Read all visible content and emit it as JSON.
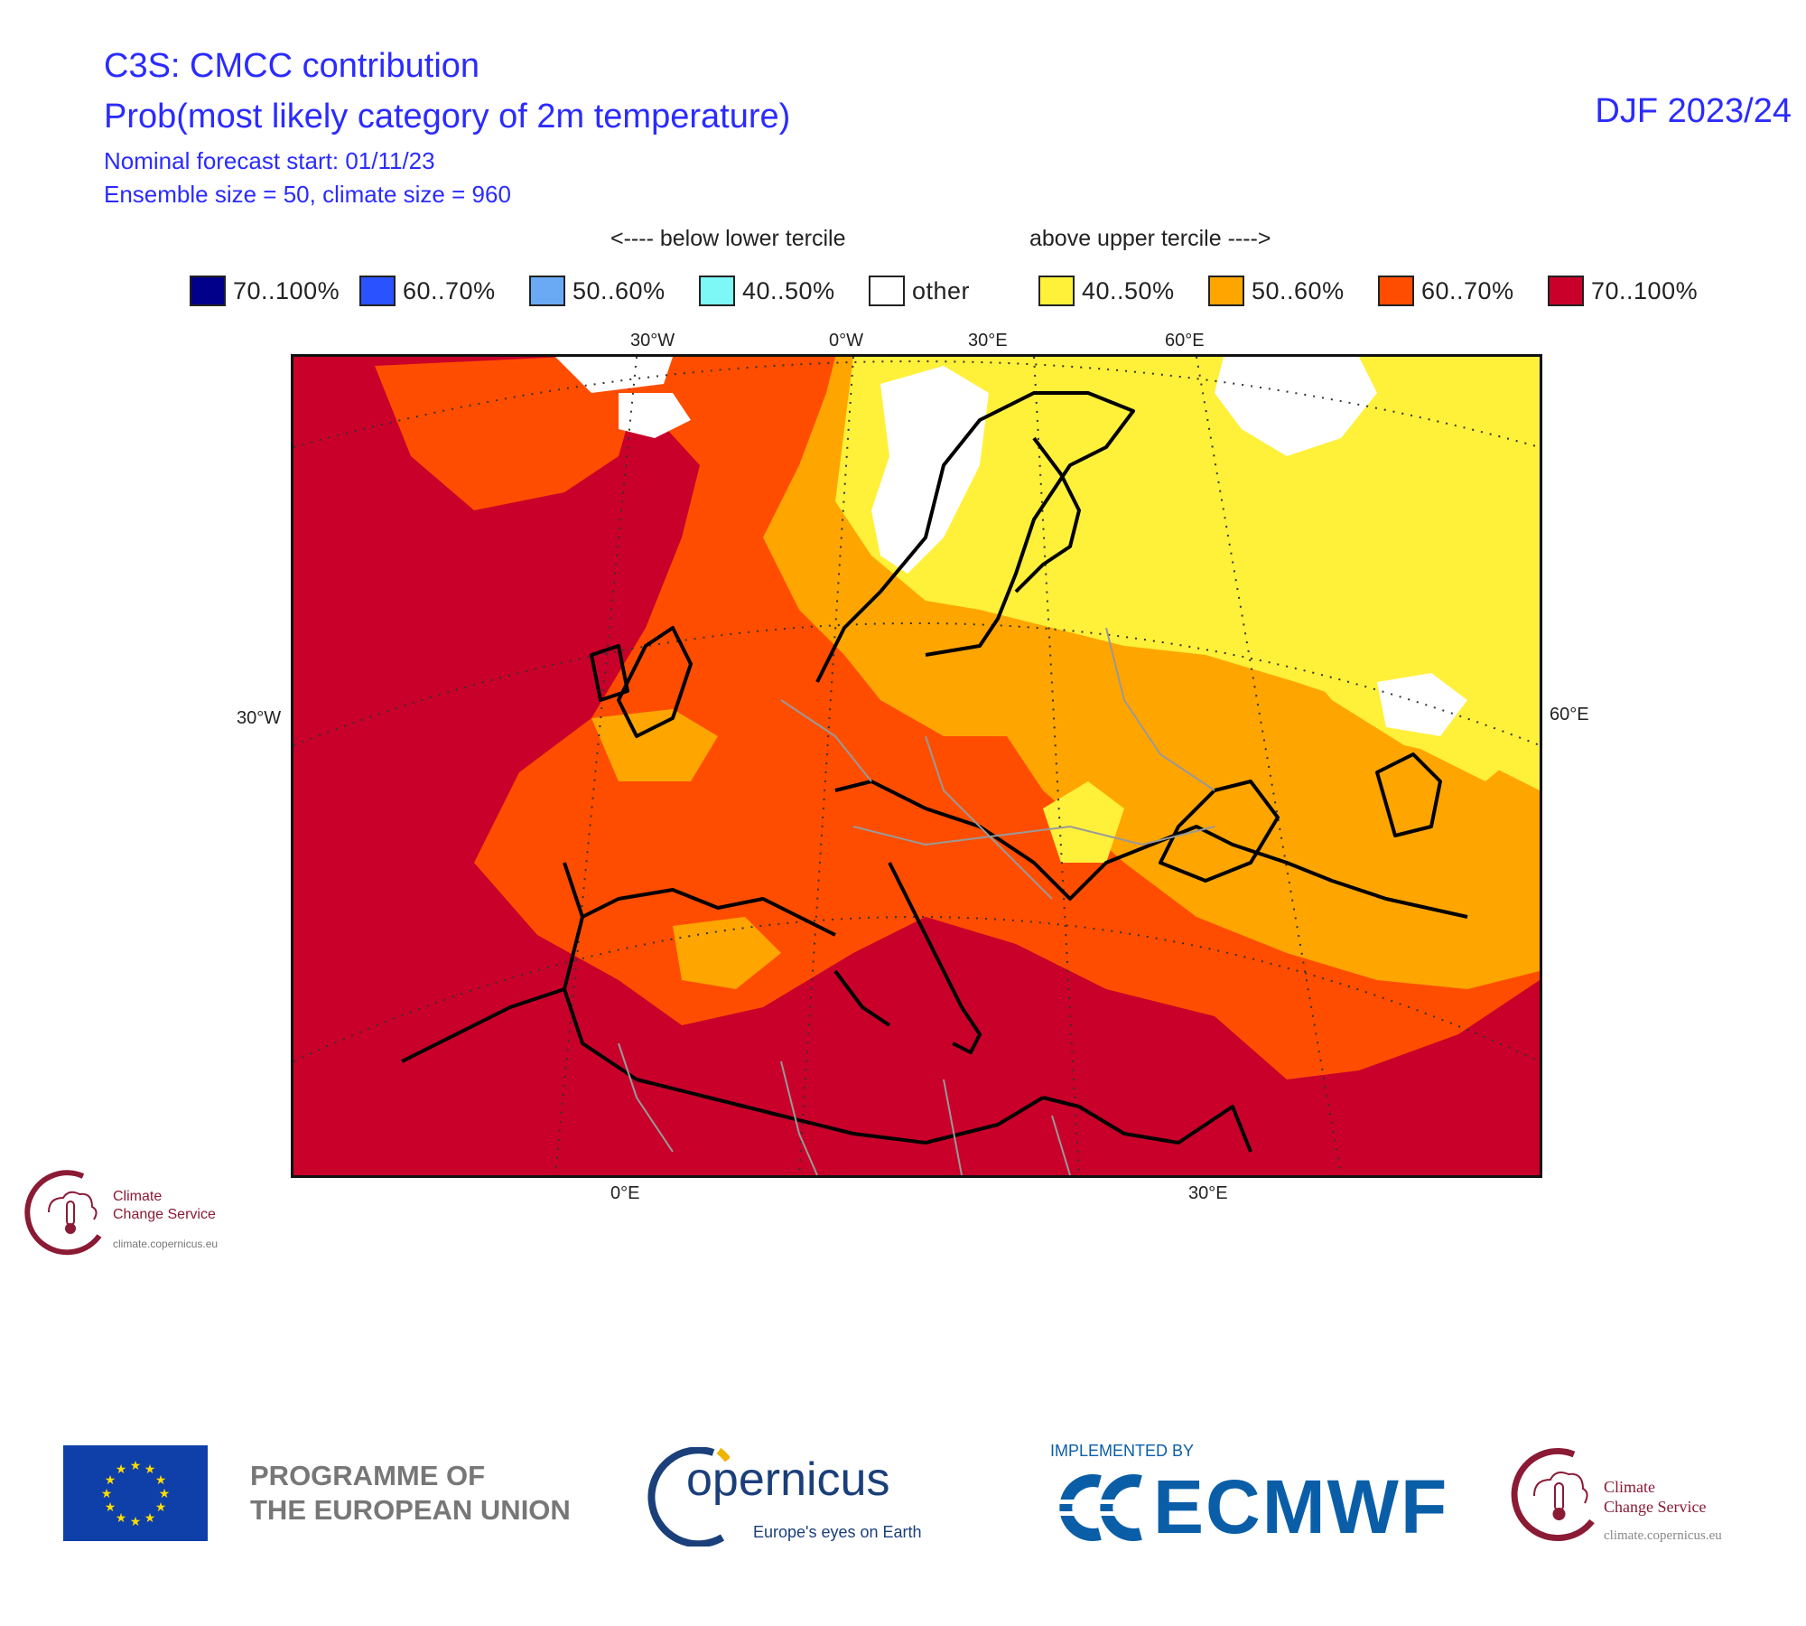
{
  "header": {
    "line1": "C3S: CMCC contribution",
    "line2": "Prob(most likely category of 2m temperature)",
    "line3": "Nominal forecast start: 01/11/23",
    "line4": "Ensemble size = 50, climate size = 960",
    "season": "DJF 2023/24"
  },
  "legend": {
    "below_label": "<---- below lower tercile",
    "above_label": "above upper tercile ---->",
    "items": [
      {
        "label": "70..100%",
        "color": "#00008b"
      },
      {
        "label": "60..70%",
        "color": "#2a52ff"
      },
      {
        "label": "50..60%",
        "color": "#6aaaf5"
      },
      {
        "label": "40..50%",
        "color": "#7ef7f7"
      },
      {
        "label": "other",
        "color": "#ffffff"
      },
      {
        "label": "40..50%",
        "color": "#fff03a"
      },
      {
        "label": "50..60%",
        "color": "#ffa500"
      },
      {
        "label": "60..70%",
        "color": "#ff4d00"
      },
      {
        "label": "70..100%",
        "color": "#c8002a"
      }
    ]
  },
  "map": {
    "axis_labels": {
      "top": [
        "30°W",
        "0°W",
        "30°E",
        "60°E"
      ],
      "left": "30°W",
      "right": "60°E",
      "bottom": [
        "0°E",
        "30°E"
      ]
    },
    "colors": {
      "deep_red": "#c8002a",
      "red_orange": "#ff4d00",
      "orange": "#ffa500",
      "yellow": "#fff03a",
      "white": "#ffffff"
    }
  },
  "logos": {
    "c3s_small": {
      "line1": "Climate",
      "line2": "Change Service",
      "url": "climate.copernicus.eu"
    },
    "eu_programme": {
      "line1": "PROGRAMME OF",
      "line2": "THE EUROPEAN UNION"
    },
    "copernicus": {
      "word": "opernicus",
      "tagline": "Europe's eyes on Earth"
    },
    "ecmwf": {
      "implemented_by": "IMPLEMENTED BY",
      "name": "ECMWF"
    },
    "c3s_large": {
      "line1": "Climate",
      "line2": "Change Service",
      "url": "climate.copernicus.eu"
    }
  }
}
